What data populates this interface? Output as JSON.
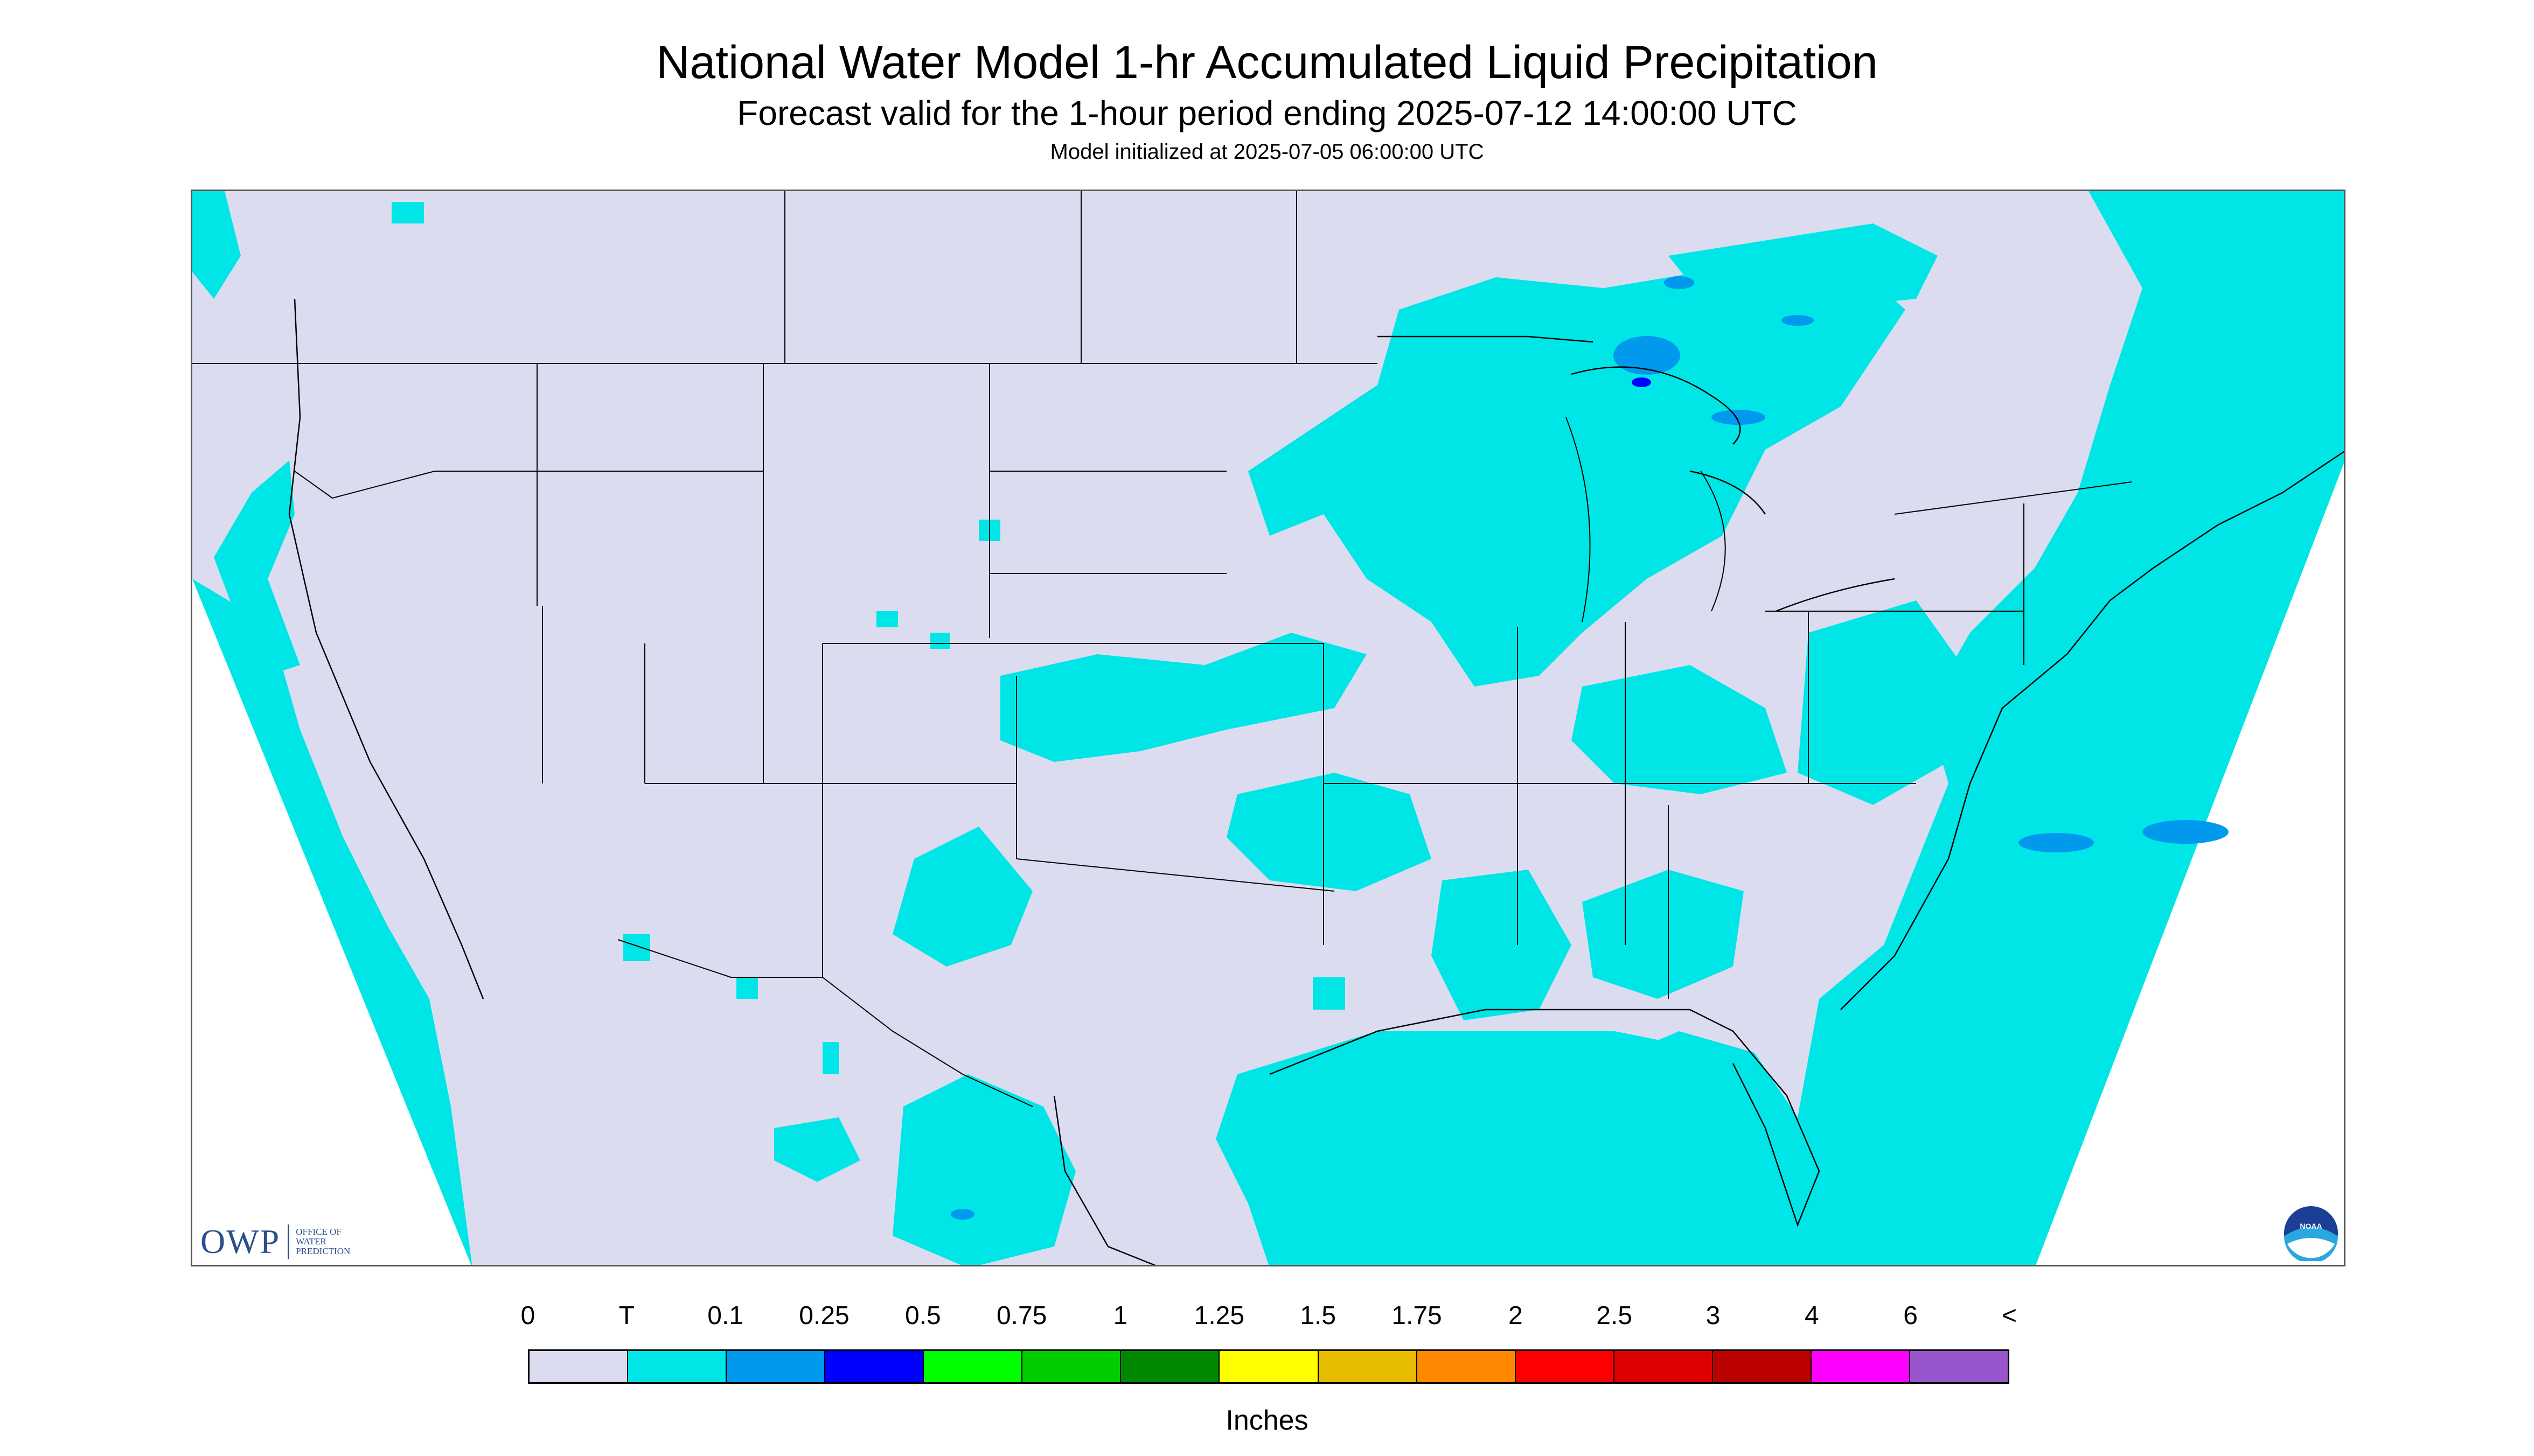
{
  "header": {
    "title": "National Water Model 1-hr Accumulated Liquid Precipitation",
    "subtitle": "Forecast valid for the 1-hour period ending 2025-07-12 14:00:00 UTC",
    "init": "Model initialized at 2025-07-05 06:00:00 UTC"
  },
  "logos": {
    "owp_mark": "OWP",
    "owp_line1": "OFFICE OF",
    "owp_line2": "WATER",
    "owp_line3": "PREDICTION",
    "noaa_text": "NOAA"
  },
  "legend": {
    "labels": [
      "0",
      "T",
      "0.1",
      "0.25",
      "0.5",
      "0.75",
      "1",
      "1.25",
      "1.5",
      "1.75",
      "2",
      "2.5",
      "3",
      "4",
      "6",
      "<"
    ],
    "colors": [
      "#dcdcf0",
      "#00e6e6",
      "#0099ee",
      "#0000ff",
      "#00ff00",
      "#00cc00",
      "#008800",
      "#ffff00",
      "#e6bb00",
      "#ff8800",
      "#ff0000",
      "#dd0000",
      "#bb0000",
      "#ff00ff",
      "#9955cc"
    ],
    "units": "Inches"
  },
  "map": {
    "background": "#dcdcf0",
    "outside": "#ffffff",
    "precip_trace": "#00e6e6",
    "precip_light": "#0099ee",
    "precip_mod": "#0000ff",
    "boundary": "#000000"
  }
}
